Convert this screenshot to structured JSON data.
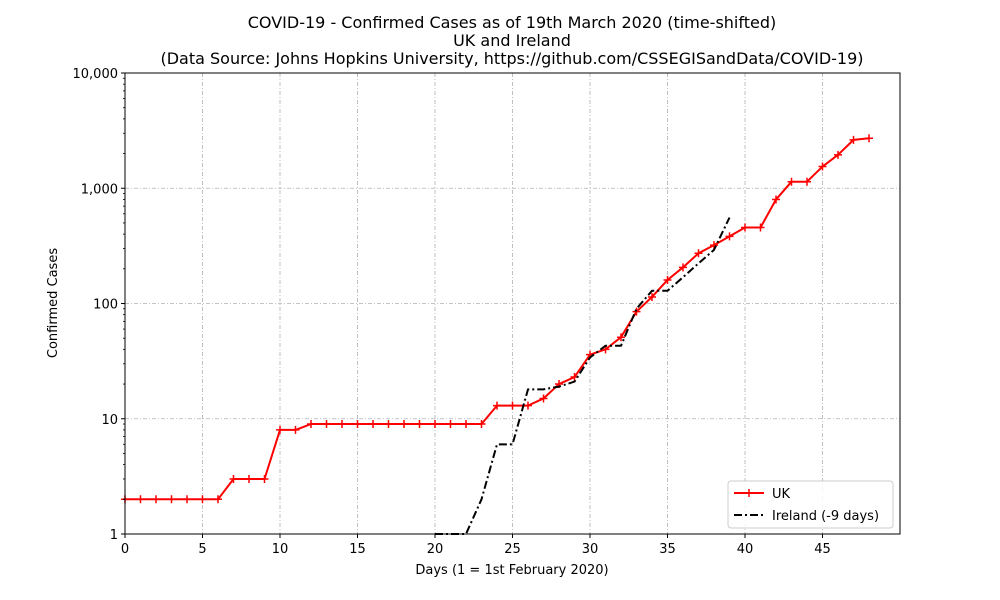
{
  "chart_data": {
    "type": "line",
    "title": "COVID-19 - Confirmed Cases as of 19th March 2020 (time-shifted)",
    "subtitle": "UK and Ireland",
    "source": "(Data Source: Johns Hopkins University, https://github.com/CSSEGISandData/COVID-19)",
    "xlabel": "Days (1 = 1st February 2020)",
    "ylabel": "Confirmed Cases",
    "xlim": [
      0,
      50
    ],
    "ylim": [
      1,
      10000
    ],
    "yscale": "log",
    "grid": true,
    "legend_position": "lower-right",
    "x_ticks": [
      0,
      5,
      10,
      15,
      20,
      25,
      30,
      35,
      40,
      45
    ],
    "y_ticks": [
      1,
      10,
      100,
      1000,
      10000
    ],
    "y_tick_labels": [
      "1",
      "10",
      "100",
      "1,000",
      "10,000"
    ],
    "series": [
      {
        "name": "UK",
        "color": "#ff0000",
        "style": "solid",
        "marker": "plus",
        "x": [
          0,
          1,
          2,
          3,
          4,
          5,
          6,
          7,
          8,
          9,
          10,
          11,
          12,
          13,
          14,
          15,
          16,
          17,
          18,
          19,
          20,
          21,
          22,
          23,
          24,
          25,
          26,
          27,
          28,
          29,
          30,
          31,
          32,
          33,
          34,
          35,
          36,
          37,
          38,
          39,
          40,
          41,
          42,
          43,
          44,
          45,
          46,
          47,
          48
        ],
        "y": [
          2,
          2,
          2,
          2,
          2,
          2,
          2,
          3,
          3,
          3,
          8,
          8,
          9,
          9,
          9,
          9,
          9,
          9,
          9,
          9,
          9,
          9,
          9,
          9,
          13,
          13,
          13,
          15,
          20,
          23,
          36,
          40,
          51,
          85,
          114,
          160,
          206,
          273,
          321,
          382,
          456,
          456,
          798,
          1140,
          1140,
          1543,
          1950,
          2630,
          2716
        ]
      },
      {
        "name": "Ireland (-9 days)",
        "color": "#000000",
        "style": "dashdot",
        "marker": "none",
        "x": [
          20,
          21,
          22,
          23,
          24,
          25,
          26,
          27,
          28,
          29,
          30,
          31,
          32,
          33,
          34,
          35,
          36,
          37,
          38,
          39
        ],
        "y": [
          1,
          1,
          1,
          2,
          6,
          6,
          18,
          18,
          19,
          21,
          34,
          43,
          43,
          90,
          129,
          129,
          169,
          223,
          292,
          557
        ]
      }
    ]
  }
}
